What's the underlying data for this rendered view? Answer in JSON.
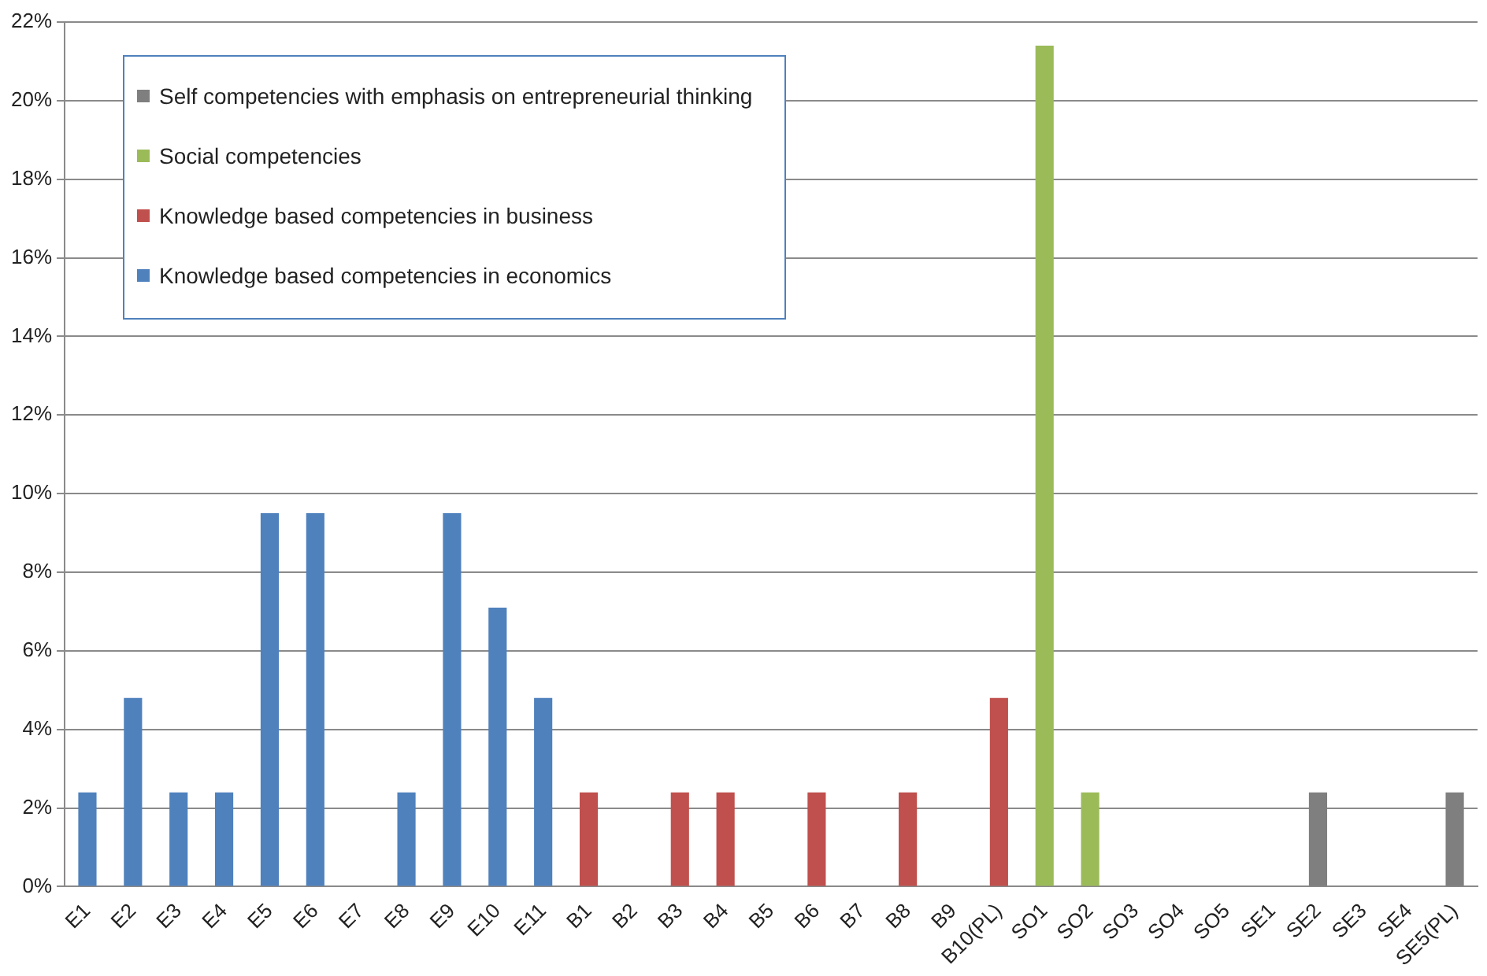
{
  "chart_data": {
    "type": "bar",
    "categories": [
      "E1",
      "E2",
      "E3",
      "E4",
      "E5",
      "E6",
      "E7",
      "E8",
      "E9",
      "E10",
      "E11",
      "B1",
      "B2",
      "B3",
      "B4",
      "B5",
      "B6",
      "B7",
      "B8",
      "B9",
      "B10(PL)",
      "SO1",
      "SO2",
      "SO3",
      "SO4",
      "SO5",
      "SE1",
      "SE2",
      "SE3",
      "SE4",
      "SE5(PL)"
    ],
    "series": [
      {
        "name": "Knowledge based competencies in economics",
        "color": "#4f81bd",
        "values": [
          2.4,
          4.8,
          2.4,
          2.4,
          9.5,
          9.5,
          0,
          2.4,
          9.5,
          7.1,
          4.8,
          null,
          null,
          null,
          null,
          null,
          null,
          null,
          null,
          null,
          null,
          null,
          null,
          null,
          null,
          null,
          null,
          null,
          null,
          null,
          null
        ]
      },
      {
        "name": "Knowledge based competencies in business",
        "color": "#c0504d",
        "values": [
          null,
          null,
          null,
          null,
          null,
          null,
          null,
          null,
          null,
          null,
          null,
          2.4,
          0,
          2.4,
          2.4,
          0,
          2.4,
          0,
          2.4,
          0,
          4.8,
          null,
          null,
          null,
          null,
          null,
          null,
          null,
          null,
          null,
          null
        ]
      },
      {
        "name": "Social competencies",
        "color": "#9bbb59",
        "values": [
          null,
          null,
          null,
          null,
          null,
          null,
          null,
          null,
          null,
          null,
          null,
          null,
          null,
          null,
          null,
          null,
          null,
          null,
          null,
          null,
          null,
          21.4,
          2.4,
          0,
          0,
          0,
          null,
          null,
          null,
          null,
          null
        ]
      },
      {
        "name": "Self competencies with emphasis on entrepreneurial thinking",
        "color": "#7f7f7f",
        "values": [
          null,
          null,
          null,
          null,
          null,
          null,
          null,
          null,
          null,
          null,
          null,
          null,
          null,
          null,
          null,
          null,
          null,
          null,
          null,
          null,
          null,
          null,
          null,
          null,
          null,
          null,
          0,
          2.4,
          0,
          0,
          2.4
        ]
      }
    ],
    "ylim": [
      0,
      22
    ],
    "yticks": [
      {
        "value": 0,
        "label": "0%"
      },
      {
        "value": 2,
        "label": "2%"
      },
      {
        "value": 4,
        "label": "4%"
      },
      {
        "value": 6,
        "label": "6%"
      },
      {
        "value": 8,
        "label": "8%"
      },
      {
        "value": 10,
        "label": "10%"
      },
      {
        "value": 12,
        "label": "12%"
      },
      {
        "value": 14,
        "label": "14%"
      },
      {
        "value": 16,
        "label": "16%"
      },
      {
        "value": 18,
        "label": "18%"
      },
      {
        "value": 20,
        "label": "20%"
      },
      {
        "value": 22,
        "label": "22%"
      }
    ],
    "grid": "y",
    "legend": "top left"
  }
}
